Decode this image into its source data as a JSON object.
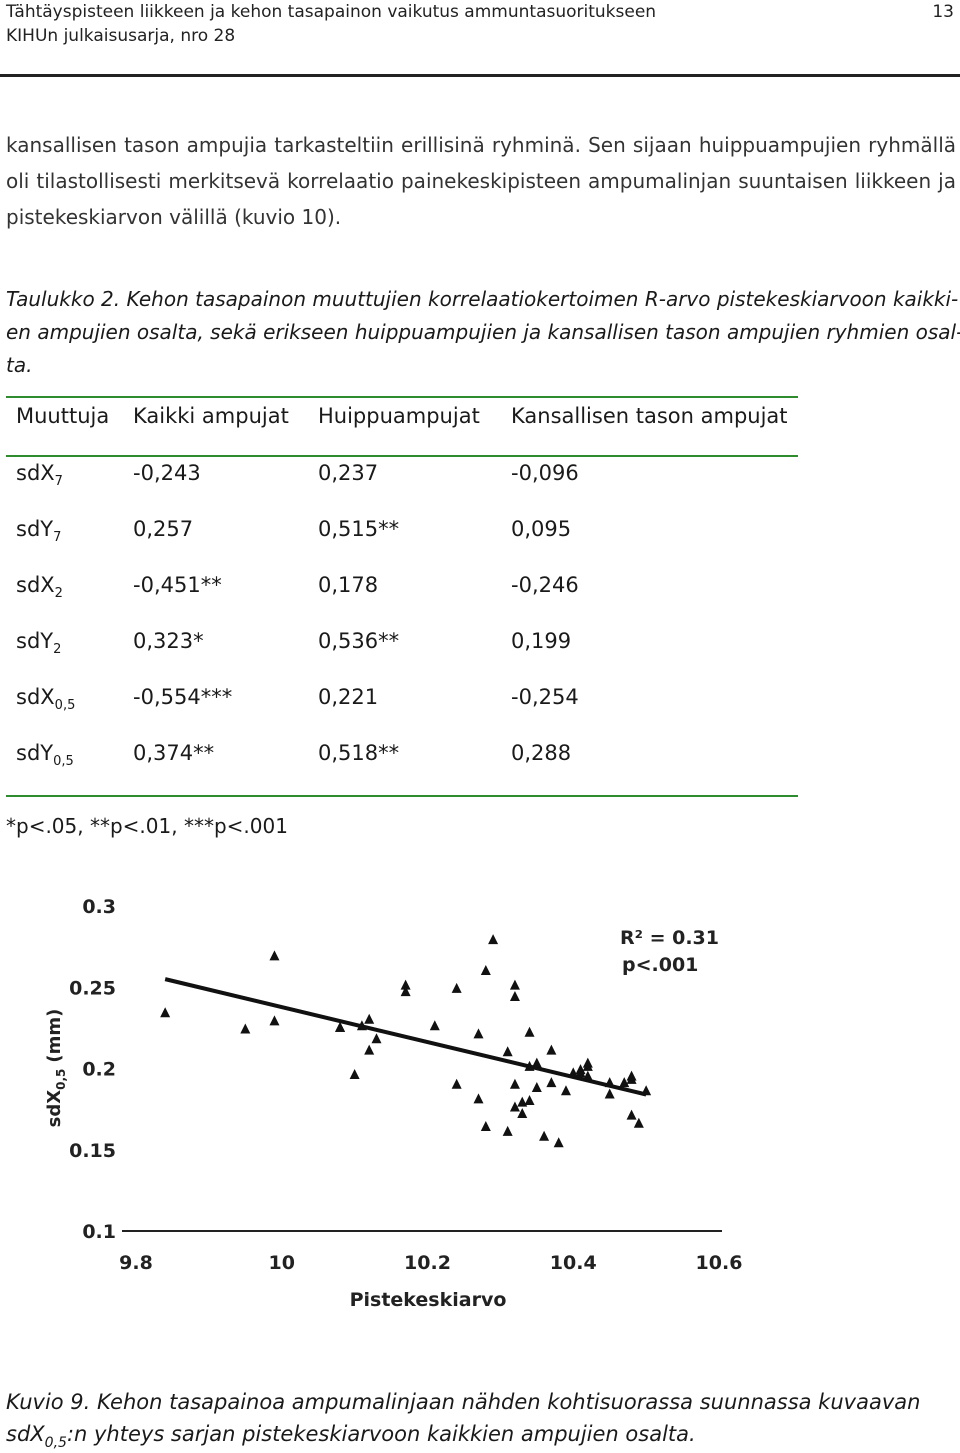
{
  "header": {
    "title": "Tähtäyspisteen liikkeen ja kehon tasapainon vaikutus ammuntasuoritukseen",
    "series": "KIHUn julkaisusarja, nro 28",
    "page_number": "13"
  },
  "paragraph": {
    "lines": [
      "kansallisen tason ampujia tarkasteltiin erillisinä ryhminä. Sen sijaan huippuampujien ryhmällä",
      "oli tilastollisesti merkitsevä korrelaatio painekeskipisteen ampumalinjan suuntaisen liikkeen ja",
      "pistekeskiarvon välillä (kuvio 10)."
    ]
  },
  "table_caption": {
    "lines": [
      "Taulukko 2. Kehon tasapainon muuttujien korrelaatiokertoimen R-arvo pistekeskiarvoon kaikki-",
      "en ampujien osalta, sekä erikseen huippuampujien ja kansallisen tason ampujien ryhmien osal-",
      "ta."
    ]
  },
  "table": {
    "headers": [
      "Muuttuja",
      "Kaikki ampujat",
      "Huippuampujat",
      "Kansallisen tason ampujat"
    ],
    "rows": [
      {
        "var": "sdX",
        "sub": "7",
        "all": "-0,243",
        "top": "0,237",
        "nat": "-0,096"
      },
      {
        "var": "sdY",
        "sub": "7",
        "all": "0,257",
        "top": "0,515**",
        "nat": "0,095"
      },
      {
        "var": "sdX",
        "sub": "2",
        "all": "-0,451**",
        "top": "0,178",
        "nat": "-0,246"
      },
      {
        "var": "sdY",
        "sub": "2",
        "all": "0,323*",
        "top": "0,536**",
        "nat": "0,199"
      },
      {
        "var": "sdX",
        "sub": "0,5",
        "all": "-0,554***",
        "top": "0,221",
        "nat": "-0,254"
      },
      {
        "var": "sdY",
        "sub": "0,5",
        "all": "0,374**",
        "top": "0,518**",
        "nat": "0,288"
      }
    ],
    "footnote": "*p<.05, **p<.01, ***p<.001",
    "rule_color": "#2e8b2e"
  },
  "chart_data": {
    "type": "scatter",
    "title": "",
    "xlabel": "Pistekeskiarvo",
    "ylabel_main": "sdX",
    "ylabel_sub": "0,5",
    "ylabel_unit": "(mm)",
    "xlim": [
      9.8,
      10.6
    ],
    "ylim": [
      0.1,
      0.3
    ],
    "xticks": [
      "9.8",
      "10",
      "10.2",
      "10.4",
      "10.6"
    ],
    "yticks": [
      "0.3",
      "0.25",
      "0.2",
      "0.15",
      "0.1"
    ],
    "annotation_r2": "R² = 0.31",
    "annotation_p": "p<.001",
    "trendline": {
      "x": [
        9.84,
        10.5
      ],
      "y": [
        0.255,
        0.184
      ]
    },
    "points": [
      [
        9.84,
        0.234
      ],
      [
        9.95,
        0.224
      ],
      [
        9.99,
        0.269
      ],
      [
        9.99,
        0.229
      ],
      [
        10.08,
        0.225
      ],
      [
        10.08,
        0.225
      ],
      [
        10.1,
        0.196
      ],
      [
        10.11,
        0.226
      ],
      [
        10.12,
        0.211
      ],
      [
        10.12,
        0.23
      ],
      [
        10.13,
        0.218
      ],
      [
        10.17,
        0.251
      ],
      [
        10.17,
        0.247
      ],
      [
        10.21,
        0.226
      ],
      [
        10.24,
        0.249
      ],
      [
        10.24,
        0.19
      ],
      [
        10.27,
        0.221
      ],
      [
        10.27,
        0.181
      ],
      [
        10.28,
        0.26
      ],
      [
        10.28,
        0.164
      ],
      [
        10.29,
        0.279
      ],
      [
        10.31,
        0.21
      ],
      [
        10.31,
        0.161
      ],
      [
        10.32,
        0.251
      ],
      [
        10.32,
        0.244
      ],
      [
        10.32,
        0.19
      ],
      [
        10.32,
        0.176
      ],
      [
        10.33,
        0.172
      ],
      [
        10.33,
        0.179
      ],
      [
        10.34,
        0.201
      ],
      [
        10.34,
        0.222
      ],
      [
        10.34,
        0.18
      ],
      [
        10.35,
        0.188
      ],
      [
        10.35,
        0.203
      ],
      [
        10.36,
        0.158
      ],
      [
        10.37,
        0.191
      ],
      [
        10.37,
        0.211
      ],
      [
        10.38,
        0.154
      ],
      [
        10.39,
        0.186
      ],
      [
        10.4,
        0.197
      ],
      [
        10.41,
        0.199
      ],
      [
        10.41,
        0.197
      ],
      [
        10.42,
        0.203
      ],
      [
        10.42,
        0.201
      ],
      [
        10.42,
        0.195
      ],
      [
        10.45,
        0.191
      ],
      [
        10.45,
        0.184
      ],
      [
        10.47,
        0.191
      ],
      [
        10.48,
        0.193
      ],
      [
        10.48,
        0.195
      ],
      [
        10.48,
        0.171
      ],
      [
        10.49,
        0.166
      ],
      [
        10.5,
        0.186
      ]
    ]
  },
  "figure_caption": {
    "line1": "Kuvio 9. Kehon tasapainoa ampumalinjaan nähden kohtisuorassa suunnassa kuvaavan",
    "var": "sdX",
    "sub": "0,5",
    "line2_rest": ":n yhteys sarjan pistekeskiarvoon kaikkien ampujien osalta."
  }
}
